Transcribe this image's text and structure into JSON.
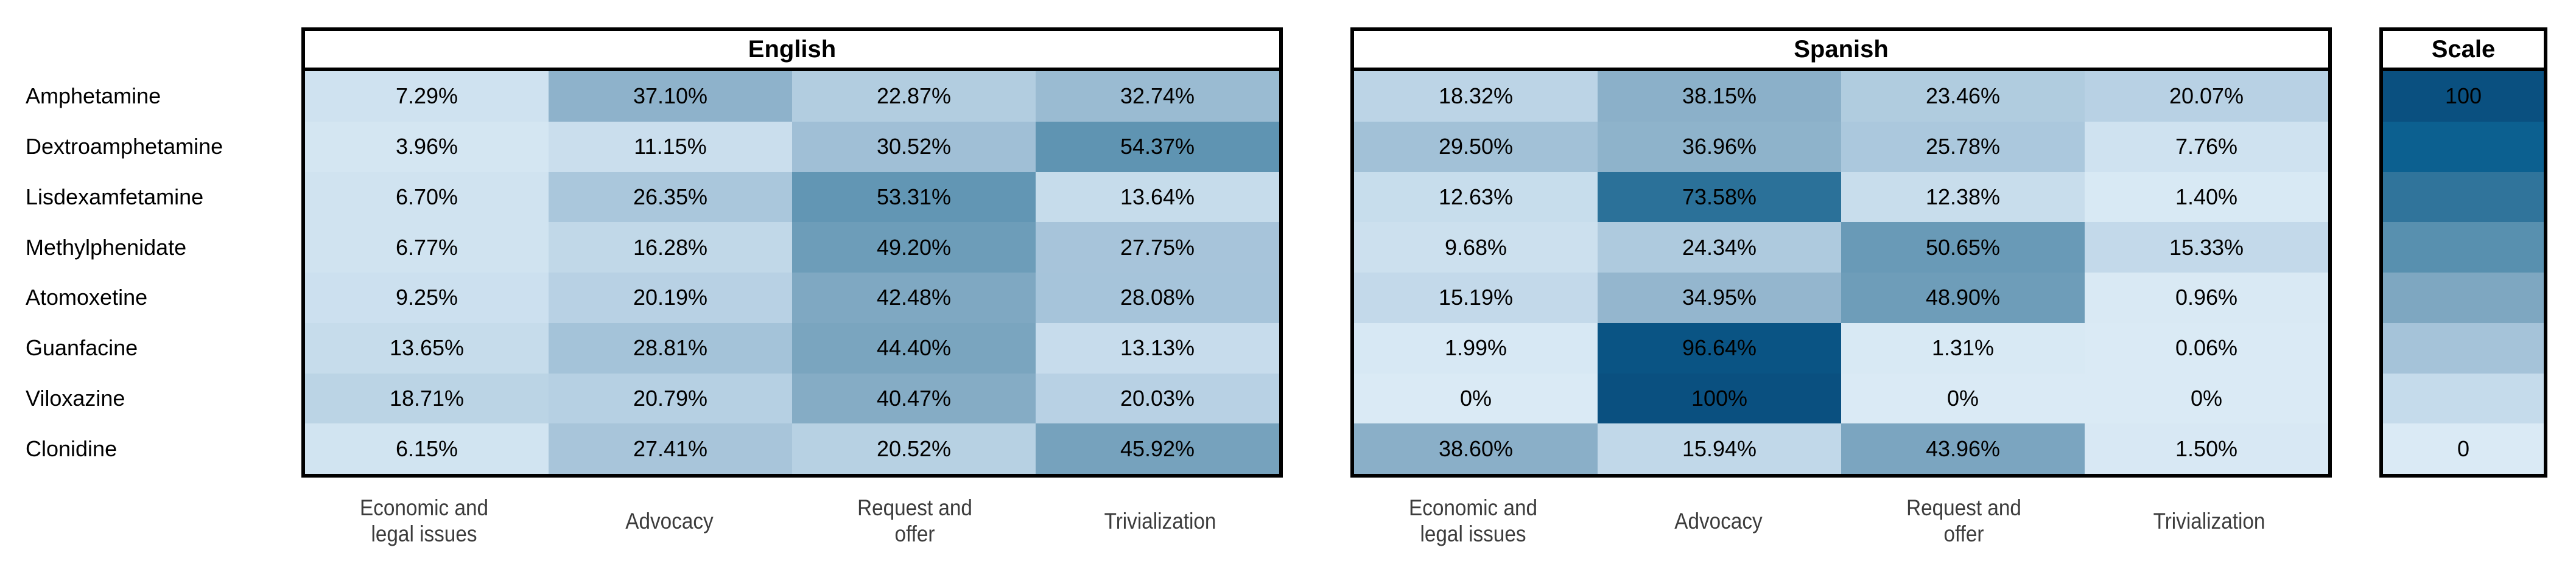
{
  "chart_data": {
    "type": "heatmap",
    "rows": [
      "Amphetamine",
      "Dextroamphetamine",
      "Lisdexamfetamine",
      "Methylphenidate",
      "Atomoxetine",
      "Guanfacine",
      "Viloxazine",
      "Clonidine"
    ],
    "columns": [
      "Economic and legal issues",
      "Advocacy",
      "Request and offer",
      "Trivialization"
    ],
    "column_label_lines": [
      [
        "Economic and",
        "legal issues"
      ],
      [
        "Advocacy"
      ],
      [
        "Request and",
        "offer"
      ],
      [
        "Trivialization"
      ]
    ],
    "series": [
      {
        "name": "English",
        "values": [
          [
            7.29,
            37.1,
            22.87,
            32.74
          ],
          [
            3.96,
            11.15,
            30.52,
            54.37
          ],
          [
            6.7,
            26.35,
            53.31,
            13.64
          ],
          [
            6.77,
            16.28,
            49.2,
            27.75
          ],
          [
            9.25,
            20.19,
            42.48,
            28.08
          ],
          [
            13.65,
            28.81,
            44.4,
            13.13
          ],
          [
            18.71,
            20.79,
            40.47,
            20.03
          ],
          [
            6.15,
            27.41,
            20.52,
            45.92
          ]
        ]
      },
      {
        "name": "Spanish",
        "values": [
          [
            18.32,
            38.15,
            23.46,
            20.07
          ],
          [
            29.5,
            36.96,
            25.78,
            7.76
          ],
          [
            12.63,
            73.58,
            12.38,
            1.4
          ],
          [
            9.68,
            24.34,
            50.65,
            15.33
          ],
          [
            15.19,
            34.95,
            48.9,
            0.96
          ],
          [
            1.99,
            96.64,
            1.31,
            0.06
          ],
          [
            0,
            100,
            0,
            0
          ],
          [
            38.6,
            15.94,
            43.96,
            1.5
          ]
        ]
      }
    ],
    "value_unit": "%",
    "scale": {
      "title": "Scale",
      "min": 0,
      "max": 100,
      "max_label": "100",
      "min_label": "0",
      "stop_colors": [
        "#daeaf5",
        "#c5dbeb",
        "#a5c3d9",
        "#7ea7c1",
        "#5890af",
        "#30749b",
        "#0c6090",
        "#0a5080"
      ]
    },
    "layout": {
      "legend_position": "right",
      "grid": false
    },
    "colors": {
      "background": "#ffffff",
      "border": "#000000",
      "cell_text": "#000000",
      "row_label_text": "#000000",
      "column_label_text": "#3c3c3c",
      "header_text": "#000000"
    }
  }
}
